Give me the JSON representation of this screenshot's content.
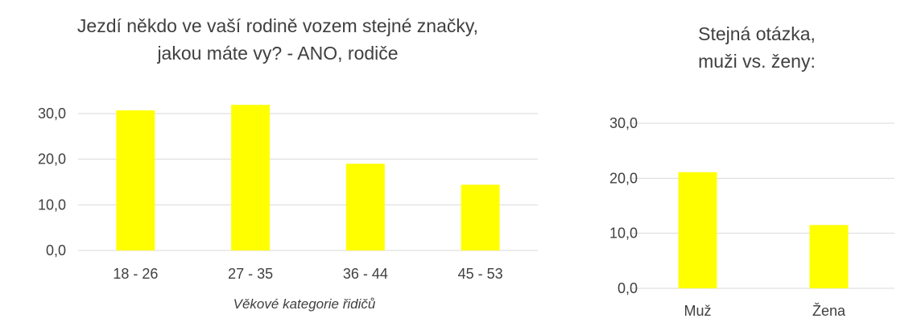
{
  "chart_data": [
    {
      "type": "bar",
      "title_lines": [
        "Jezdí někdo ve vaší rodině vozem stejné značky,",
        "jakou máte vy? - ANO, rodiče"
      ],
      "categories": [
        "18 - 26",
        "27 - 35",
        "36 - 44",
        "45 - 53"
      ],
      "values": [
        30.7,
        31.9,
        19.0,
        14.4
      ],
      "xlabel": "Věkové kategorie řidičů",
      "ylabel": "",
      "ylim": [
        0,
        30
      ],
      "yticks": [
        "0,0",
        "10,0",
        "20,0",
        "30,0"
      ],
      "grid": true,
      "bar_color": "#FFFF00"
    },
    {
      "type": "bar",
      "title_lines": [
        "Stejná otázka,",
        "muži vs. ženy:"
      ],
      "categories": [
        "Muž",
        "Žena"
      ],
      "values": [
        21.1,
        11.5
      ],
      "xlabel": "",
      "ylabel": "",
      "ylim": [
        0,
        30
      ],
      "yticks": [
        "0,0",
        "10,0",
        "20,0",
        "30,0"
      ],
      "grid": true,
      "bar_color": "#FFFF00"
    }
  ]
}
